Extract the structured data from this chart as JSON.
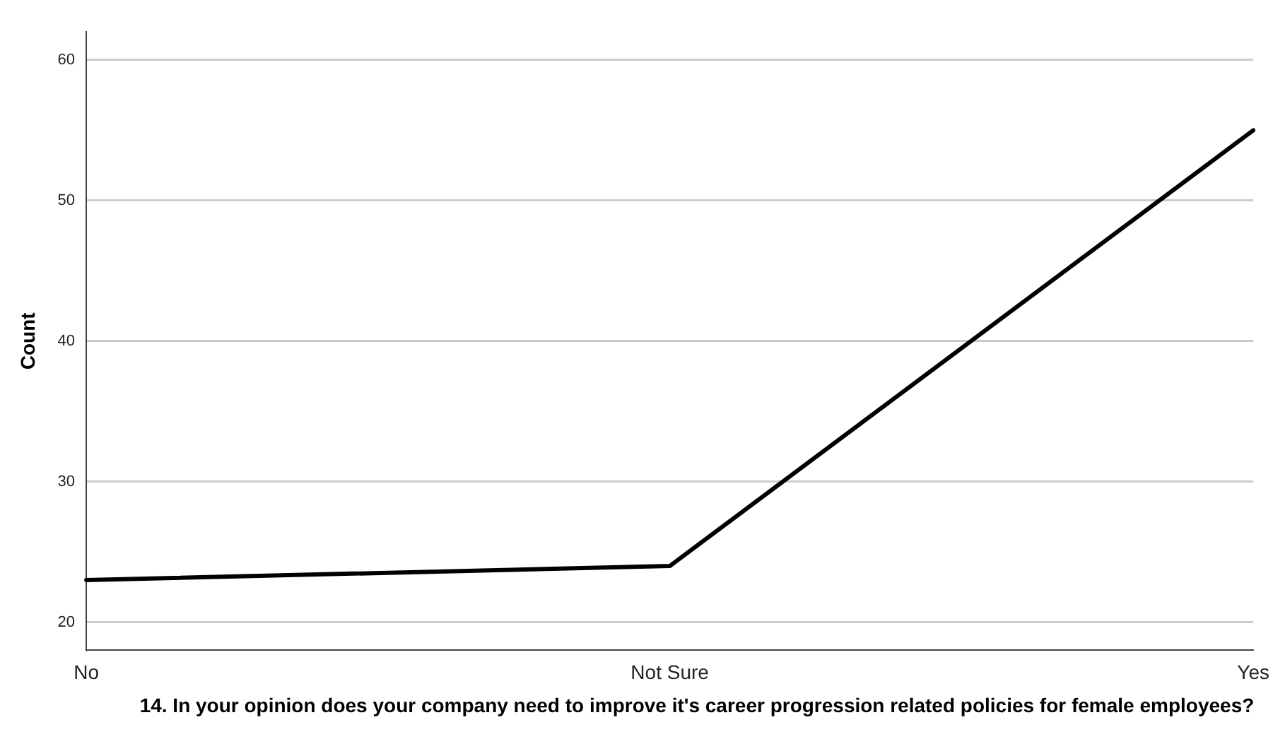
{
  "chart_data": {
    "type": "line",
    "xlabel": "14. In your opinion does your company need to improve it's career progression related policies for female employees?",
    "ylabel": "Count",
    "categories": [
      "No",
      "Not Sure",
      "Yes"
    ],
    "series": [
      {
        "color": "#000000",
        "values": [
          23,
          24,
          55
        ]
      }
    ],
    "ylim": [
      18,
      62
    ],
    "yticks": [
      20,
      30,
      40,
      50,
      60
    ],
    "grid": "y",
    "legend": false,
    "marker": "none",
    "line_style": "solid"
  }
}
